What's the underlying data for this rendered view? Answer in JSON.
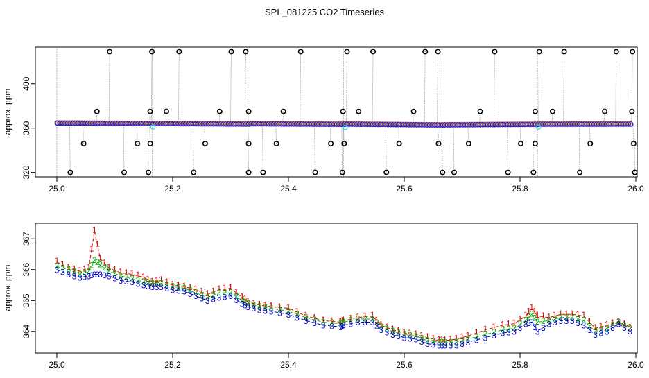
{
  "title": "SPL_081225  CO2 Timeseries",
  "colors": {
    "axis": "#000000",
    "grid_line": "#9a9a9a",
    "marker_black": "#000000",
    "marker_blue": "#1f1fd6",
    "marker_cyan": "#33d6e6",
    "marker_orange": "#e07a1a",
    "series1": "#dd0000",
    "series2": "#00b400",
    "series3": "#0000cc"
  },
  "chart_data": [
    {
      "type": "scatter",
      "ylabel": "approx. ppm",
      "xlabel": "",
      "xlim": [
        25.0,
        26.0
      ],
      "ylim": [
        316,
        433
      ],
      "x_ticks": [
        "25.0",
        "25.2",
        "25.4",
        "25.6",
        "25.8",
        "26.0"
      ],
      "x_tick_values": [
        25.0,
        25.2,
        25.4,
        25.6,
        25.8,
        26.0
      ],
      "y_ticks": [
        "320",
        "360",
        "400"
      ],
      "y_tick_values": [
        320,
        360,
        400
      ],
      "baseline_segments": [
        {
          "x": [
            25.0,
            25.165
          ],
          "y": [
            364.5,
            364.1
          ]
        },
        {
          "x": [
            25.165,
            25.33
          ],
          "y": [
            364.1,
            363.6
          ]
        },
        {
          "x": [
            25.33,
            25.495
          ],
          "y": [
            363.9,
            363.4
          ]
        },
        {
          "x": [
            25.495,
            25.665
          ],
          "y": [
            363.6,
            362.8
          ]
        },
        {
          "x": [
            25.665,
            25.83
          ],
          "y": [
            362.9,
            363.4
          ]
        },
        {
          "x": [
            25.83,
            25.99
          ],
          "y": [
            363.5,
            363.6
          ]
        }
      ],
      "spikes_high": [
        25.09,
        25.163,
        25.21,
        25.3,
        25.325,
        25.42,
        25.5,
        25.545,
        25.635,
        25.657,
        25.755,
        25.832,
        25.875,
        25.965,
        25.993
      ],
      "spikes_mid_high": [
        25.068,
        25.16,
        25.188,
        25.28,
        25.33,
        25.39,
        25.493,
        25.52,
        25.615,
        25.73,
        25.825,
        25.855,
        25.945,
        25.992
      ],
      "spikes_mid_low": [
        25.045,
        25.138,
        25.16,
        25.255,
        25.33,
        25.378,
        25.472,
        25.495,
        25.59,
        25.658,
        25.71,
        25.8,
        25.825,
        25.92,
        25.995
      ],
      "spikes_low": [
        25.022,
        25.115,
        25.157,
        25.235,
        25.33,
        25.355,
        25.445,
        25.492,
        25.568,
        25.665,
        25.685,
        25.778,
        25.822,
        25.902,
        25.997
      ],
      "spike_levels": {
        "high": 429,
        "mid_high": 375,
        "mid_low": 346,
        "low": 320
      },
      "cyan_points": [
        {
          "x": 25.166,
          "y": 361
        },
        {
          "x": 25.498,
          "y": 360.5
        },
        {
          "x": 25.832,
          "y": 361
        }
      ]
    },
    {
      "type": "line",
      "ylabel": "approx. ppm",
      "xlabel": "",
      "xlim": [
        25.0,
        26.0
      ],
      "ylim": [
        363.3,
        367.5
      ],
      "x_ticks": [
        "25.0",
        "25.2",
        "25.4",
        "25.6",
        "25.8",
        "26.0"
      ],
      "x_tick_values": [
        25.0,
        25.2,
        25.4,
        25.6,
        25.8,
        26.0
      ],
      "y_ticks": [
        "364",
        "365",
        "366",
        "367"
      ],
      "y_tick_values": [
        364,
        365,
        366,
        367
      ],
      "series_markers": [
        "1",
        "2",
        "3"
      ],
      "series": [
        {
          "name": "1",
          "x": [
            25.0,
            25.02,
            25.04,
            25.055,
            25.065,
            25.075,
            25.09,
            25.11,
            25.13,
            25.15,
            25.165,
            25.18,
            25.2,
            25.22,
            25.24,
            25.26,
            25.28,
            25.3,
            25.32,
            25.33,
            25.35,
            25.37,
            25.4,
            25.43,
            25.46,
            25.49,
            25.495,
            25.52,
            25.545,
            25.56,
            25.58,
            25.6,
            25.62,
            25.64,
            25.66,
            25.67,
            25.69,
            25.71,
            25.74,
            25.77,
            25.79,
            25.81,
            25.82,
            25.83,
            25.85,
            25.87,
            25.89,
            25.91,
            25.93,
            25.95,
            25.97,
            25.99
          ],
          "y": [
            366.25,
            366.05,
            365.95,
            366.05,
            367.25,
            366.35,
            366.05,
            365.9,
            365.85,
            365.75,
            365.6,
            365.65,
            365.5,
            365.45,
            365.35,
            365.2,
            365.35,
            365.4,
            365.1,
            364.95,
            364.85,
            364.8,
            364.75,
            364.5,
            364.35,
            364.3,
            364.35,
            364.45,
            364.5,
            364.2,
            364.05,
            363.95,
            363.9,
            363.8,
            363.7,
            363.7,
            363.75,
            363.85,
            364.05,
            364.2,
            364.25,
            364.5,
            364.75,
            364.5,
            364.45,
            364.55,
            364.55,
            364.5,
            364.1,
            364.2,
            364.3,
            364.15
          ]
        },
        {
          "name": "2",
          "x": [
            25.0,
            25.02,
            25.04,
            25.055,
            25.065,
            25.075,
            25.09,
            25.11,
            25.13,
            25.15,
            25.165,
            25.18,
            25.2,
            25.22,
            25.24,
            25.26,
            25.28,
            25.3,
            25.32,
            25.33,
            25.35,
            25.37,
            25.4,
            25.43,
            25.46,
            25.49,
            25.495,
            25.52,
            25.545,
            25.56,
            25.58,
            25.6,
            25.62,
            25.64,
            25.66,
            25.67,
            25.69,
            25.71,
            25.74,
            25.77,
            25.79,
            25.81,
            25.82,
            25.83,
            25.85,
            25.87,
            25.89,
            25.91,
            25.93,
            25.95,
            25.97,
            25.99
          ],
          "y": [
            366.1,
            366.0,
            365.85,
            365.95,
            366.3,
            366.15,
            365.95,
            365.8,
            365.7,
            365.6,
            365.55,
            365.55,
            365.45,
            365.4,
            365.25,
            365.1,
            365.25,
            365.25,
            365.0,
            364.9,
            364.8,
            364.75,
            364.65,
            364.45,
            364.3,
            364.25,
            364.3,
            364.4,
            364.4,
            364.15,
            364.0,
            363.9,
            363.85,
            363.7,
            363.65,
            363.65,
            363.65,
            363.75,
            363.9,
            364.05,
            364.1,
            364.35,
            364.55,
            364.3,
            364.35,
            364.45,
            364.45,
            364.35,
            364.0,
            364.1,
            364.3,
            364.1
          ]
        },
        {
          "name": "3",
          "x": [
            25.0,
            25.02,
            25.04,
            25.055,
            25.065,
            25.075,
            25.09,
            25.11,
            25.13,
            25.15,
            25.165,
            25.18,
            25.2,
            25.22,
            25.24,
            25.26,
            25.28,
            25.3,
            25.32,
            25.33,
            25.35,
            25.37,
            25.4,
            25.43,
            25.46,
            25.49,
            25.495,
            25.52,
            25.545,
            25.56,
            25.58,
            25.6,
            25.62,
            25.64,
            25.66,
            25.67,
            25.69,
            25.71,
            25.74,
            25.77,
            25.79,
            25.81,
            25.82,
            25.83,
            25.85,
            25.87,
            25.89,
            25.91,
            25.93,
            25.95,
            25.97,
            25.99
          ],
          "y": [
            366.0,
            365.85,
            365.75,
            365.8,
            365.85,
            365.85,
            365.8,
            365.65,
            365.6,
            365.5,
            365.45,
            365.45,
            365.35,
            365.3,
            365.15,
            365.0,
            365.1,
            365.15,
            364.9,
            364.8,
            364.7,
            364.65,
            364.55,
            364.35,
            364.2,
            364.15,
            364.2,
            364.3,
            364.3,
            364.05,
            363.9,
            363.8,
            363.75,
            363.6,
            363.55,
            363.55,
            363.55,
            363.65,
            363.8,
            363.95,
            364.0,
            364.25,
            364.3,
            364.0,
            364.25,
            364.35,
            364.35,
            364.2,
            363.9,
            364.0,
            364.25,
            364.0
          ]
        }
      ]
    }
  ]
}
